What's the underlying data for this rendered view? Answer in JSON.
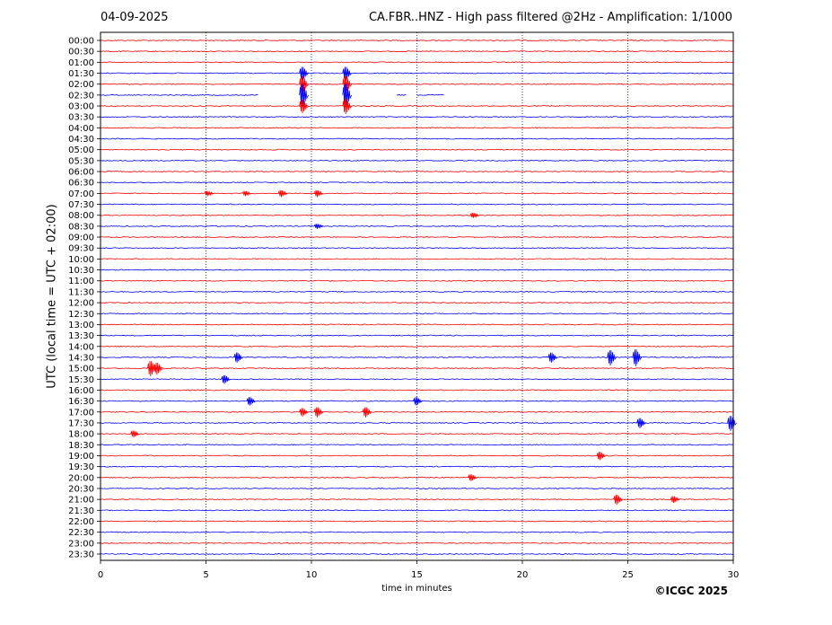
{
  "header": {
    "date": "04-09-2025",
    "title": "CA.FBR..HNZ - High pass filtered @2Hz - Amplification: 1/1000"
  },
  "footer": {
    "copyright": "©ICGC 2025"
  },
  "colors": {
    "odd_trace": "#ff0000",
    "even_trace": "#0000ff",
    "grid": "#000080",
    "axes": "#000000"
  },
  "chart_data": {
    "type": "line",
    "title": "CA.FBR..HNZ - High pass filtered @2Hz - Amplification: 1/1000",
    "xlabel": "time in minutes",
    "ylabel": "UTC (local time = UTC + 02:00)",
    "xlim": [
      0,
      30
    ],
    "x_ticks": [
      0,
      5,
      10,
      15,
      20,
      25,
      30
    ],
    "grid": "vertical dotted at 5-minute intervals",
    "rows": [
      "00:00",
      "00:30",
      "01:00",
      "01:30",
      "02:00",
      "02:30",
      "03:00",
      "03:30",
      "04:00",
      "04:30",
      "05:00",
      "05:30",
      "06:00",
      "06:30",
      "07:00",
      "07:30",
      "08:00",
      "08:30",
      "09:00",
      "09:30",
      "10:00",
      "10:30",
      "11:00",
      "11:30",
      "12:00",
      "12:30",
      "13:00",
      "13:30",
      "14:00",
      "14:30",
      "15:00",
      "15:30",
      "16:00",
      "16:30",
      "17:00",
      "17:30",
      "18:00",
      "18:30",
      "19:00",
      "19:30",
      "20:00",
      "20:30",
      "21:00",
      "21:30",
      "22:00",
      "22:30",
      "23:00",
      "23:30"
    ],
    "row_colors": [
      "red",
      "red",
      "red",
      "blue",
      "red",
      "blue",
      "red",
      "blue",
      "red",
      "blue",
      "red",
      "blue",
      "red",
      "blue",
      "red",
      "blue",
      "red",
      "blue",
      "red",
      "blue",
      "red",
      "blue",
      "red",
      "blue",
      "red",
      "blue",
      "red",
      "blue",
      "red",
      "blue",
      "red",
      "blue",
      "red",
      "blue",
      "red",
      "blue",
      "red",
      "blue",
      "red",
      "blue",
      "red",
      "blue",
      "red",
      "blue",
      "red",
      "blue",
      "red",
      "blue"
    ],
    "trace_gap": {
      "row": "02:30",
      "from_min": 7.5,
      "to_min": 14.0
    },
    "trace_gap_2": {
      "row": "02:30",
      "from_min": 14.5,
      "to_min": 15.0
    },
    "trace_end": {
      "row": "02:30",
      "at_min": 16.3
    },
    "events": [
      {
        "row": "01:30",
        "t": 9.6,
        "amp": 8
      },
      {
        "row": "02:00",
        "t": 9.6,
        "amp": 10
      },
      {
        "row": "02:30",
        "t": 9.6,
        "amp": 14
      },
      {
        "row": "03:00",
        "t": 9.6,
        "amp": 8
      },
      {
        "row": "01:30",
        "t": 11.65,
        "amp": 8
      },
      {
        "row": "02:00",
        "t": 11.65,
        "amp": 10
      },
      {
        "row": "02:30",
        "t": 11.65,
        "amp": 14
      },
      {
        "row": "03:00",
        "t": 11.65,
        "amp": 9
      },
      {
        "row": "07:00",
        "t": 5.1,
        "amp": 3
      },
      {
        "row": "07:00",
        "t": 6.9,
        "amp": 3
      },
      {
        "row": "07:00",
        "t": 8.6,
        "amp": 4
      },
      {
        "row": "07:00",
        "t": 10.3,
        "amp": 4
      },
      {
        "row": "08:00",
        "t": 17.7,
        "amp": 3
      },
      {
        "row": "08:30",
        "t": 10.3,
        "amp": 3
      },
      {
        "row": "14:30",
        "t": 6.5,
        "amp": 6
      },
      {
        "row": "14:30",
        "t": 21.4,
        "amp": 6
      },
      {
        "row": "14:30",
        "t": 24.2,
        "amp": 9
      },
      {
        "row": "14:30",
        "t": 25.4,
        "amp": 10
      },
      {
        "row": "15:00",
        "t": 2.4,
        "amp": 9
      },
      {
        "row": "15:00",
        "t": 2.7,
        "amp": 7
      },
      {
        "row": "15:30",
        "t": 5.9,
        "amp": 5
      },
      {
        "row": "16:30",
        "t": 7.1,
        "amp": 5
      },
      {
        "row": "16:30",
        "t": 15.0,
        "amp": 5
      },
      {
        "row": "17:00",
        "t": 9.6,
        "amp": 5
      },
      {
        "row": "17:00",
        "t": 10.3,
        "amp": 6
      },
      {
        "row": "17:00",
        "t": 12.6,
        "amp": 6
      },
      {
        "row": "17:30",
        "t": 25.6,
        "amp": 6
      },
      {
        "row": "17:30",
        "t": 29.9,
        "amp": 9
      },
      {
        "row": "18:00",
        "t": 1.6,
        "amp": 4
      },
      {
        "row": "19:00",
        "t": 23.7,
        "amp": 5
      },
      {
        "row": "20:00",
        "t": 17.6,
        "amp": 4
      },
      {
        "row": "21:00",
        "t": 24.5,
        "amp": 6
      },
      {
        "row": "21:00",
        "t": 27.2,
        "amp": 4
      }
    ]
  }
}
